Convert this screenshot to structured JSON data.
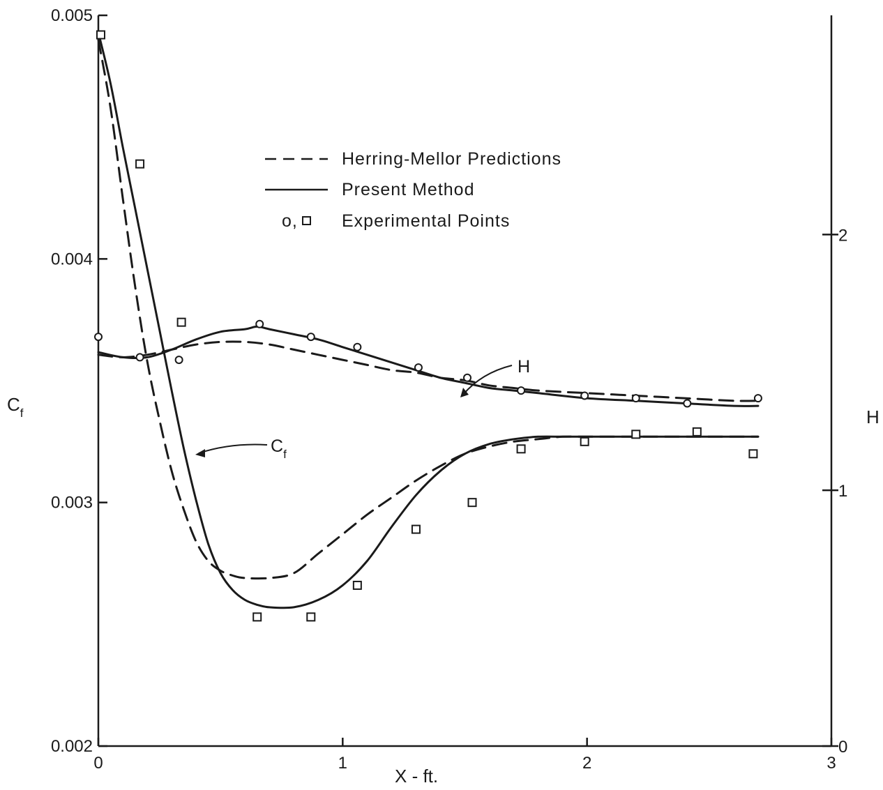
{
  "chart_data": {
    "type": "line",
    "x_axis": {
      "label": "X - ft.",
      "range": [
        0,
        3
      ],
      "ticks": [
        0,
        1,
        2,
        3
      ],
      "tick_labels": [
        "0",
        "1",
        "2",
        "3"
      ]
    },
    "y_left_axis": {
      "label": "C",
      "label_subscript": "f",
      "range": [
        0.002,
        0.005
      ],
      "ticks": [
        0.002,
        0.003,
        0.004,
        0.005
      ],
      "tick_labels": [
        "0.002",
        "0.003",
        "0.004",
        "0.005"
      ]
    },
    "y_right_axis": {
      "label": "H",
      "range": [
        0,
        2.857
      ],
      "ticks": [
        0,
        1,
        2
      ],
      "tick_labels": [
        "0",
        "1",
        "2"
      ]
    },
    "grid": false,
    "legend": {
      "placement": "top-center",
      "entries": [
        {
          "style": "dashed",
          "label": "Herring-Mellor Predictions"
        },
        {
          "style": "solid",
          "label": "Present Method"
        },
        {
          "style": "markers",
          "symbol_text": "o,",
          "label": "Experimental Points"
        }
      ]
    },
    "annotations": [
      {
        "text": "H",
        "target": "H curves"
      },
      {
        "text": "C",
        "subscript": "f",
        "target": "Cf curves"
      }
    ],
    "series": [
      {
        "curve": "Cf",
        "style": "solid",
        "axis": "left",
        "x": [
          0,
          0.05,
          0.1,
          0.15,
          0.2,
          0.25,
          0.3,
          0.35,
          0.4,
          0.45,
          0.5,
          0.55,
          0.6,
          0.65,
          0.7,
          0.8,
          0.9,
          1.0,
          1.1,
          1.2,
          1.3,
          1.4,
          1.5,
          1.6,
          1.7,
          1.8,
          1.9,
          2.0,
          2.2,
          2.4,
          2.6,
          2.7
        ],
        "y": [
          0.00493,
          0.00472,
          0.00446,
          0.00421,
          0.00396,
          0.00371,
          0.00346,
          0.00322,
          0.00301,
          0.00283,
          0.00271,
          0.00264,
          0.0026,
          0.00258,
          0.00257,
          0.00257,
          0.0026,
          0.00266,
          0.00276,
          0.0029,
          0.00303,
          0.00313,
          0.0032,
          0.00324,
          0.00326,
          0.00327,
          0.00327,
          0.00327,
          0.00327,
          0.00327,
          0.00327,
          0.00327
        ]
      },
      {
        "curve": "Cf",
        "style": "dashed",
        "axis": "left",
        "x": [
          0,
          0.05,
          0.1,
          0.15,
          0.2,
          0.25,
          0.3,
          0.35,
          0.4,
          0.45,
          0.5,
          0.55,
          0.6,
          0.7,
          0.8,
          0.9,
          1.0,
          1.1,
          1.2,
          1.3,
          1.4,
          1.5,
          1.6,
          1.7,
          1.8,
          1.9,
          2.0,
          2.2,
          2.4,
          2.6,
          2.7
        ],
        "y": [
          0.0049,
          0.00462,
          0.00425,
          0.00389,
          0.00358,
          0.00334,
          0.00313,
          0.00297,
          0.00284,
          0.00276,
          0.00272,
          0.0027,
          0.00269,
          0.00269,
          0.00271,
          0.00279,
          0.00287,
          0.00295,
          0.00302,
          0.00309,
          0.00315,
          0.0032,
          0.00323,
          0.00325,
          0.00326,
          0.00327,
          0.00327,
          0.00327,
          0.00327,
          0.00327,
          0.00327
        ]
      },
      {
        "curve": "H",
        "style": "solid",
        "axis": "right",
        "x": [
          0,
          0.1,
          0.2,
          0.3,
          0.4,
          0.5,
          0.6,
          0.65,
          0.7,
          0.8,
          0.9,
          1.0,
          1.1,
          1.2,
          1.3,
          1.4,
          1.5,
          1.6,
          1.7,
          1.8,
          2.0,
          2.2,
          2.4,
          2.6,
          2.7
        ],
        "y": [
          1.54,
          1.52,
          1.52,
          1.55,
          1.59,
          1.62,
          1.63,
          1.64,
          1.63,
          1.61,
          1.59,
          1.56,
          1.53,
          1.5,
          1.47,
          1.44,
          1.42,
          1.4,
          1.39,
          1.38,
          1.36,
          1.35,
          1.34,
          1.33,
          1.33
        ]
      },
      {
        "curve": "H",
        "style": "dashed",
        "axis": "right",
        "x": [
          0,
          0.1,
          0.2,
          0.3,
          0.4,
          0.5,
          0.6,
          0.7,
          0.8,
          0.9,
          1.0,
          1.1,
          1.2,
          1.3,
          1.4,
          1.5,
          1.6,
          1.7,
          1.8,
          2.0,
          2.2,
          2.4,
          2.6,
          2.7
        ],
        "y": [
          1.53,
          1.52,
          1.53,
          1.55,
          1.57,
          1.58,
          1.58,
          1.57,
          1.55,
          1.53,
          1.51,
          1.49,
          1.47,
          1.46,
          1.44,
          1.43,
          1.41,
          1.4,
          1.39,
          1.38,
          1.37,
          1.36,
          1.35,
          1.35
        ]
      },
      {
        "curve": "Cf",
        "style": "markers",
        "marker": "square",
        "axis": "left",
        "x": [
          0.01,
          0.17,
          0.34,
          0.65,
          0.87,
          1.06,
          1.3,
          1.53,
          1.73,
          1.99,
          2.2,
          2.45,
          2.68
        ],
        "y": [
          0.00492,
          0.00439,
          0.00374,
          0.00253,
          0.00253,
          0.00266,
          0.00289,
          0.003,
          0.00322,
          0.00325,
          0.00328,
          0.00329,
          0.0032
        ]
      },
      {
        "curve": "H",
        "style": "markers",
        "marker": "circle",
        "axis": "right",
        "x": [
          0,
          0.17,
          0.33,
          0.66,
          0.87,
          1.06,
          1.31,
          1.51,
          1.73,
          1.99,
          2.2,
          2.41,
          2.7
        ],
        "y": [
          1.6,
          1.52,
          1.51,
          1.65,
          1.6,
          1.56,
          1.48,
          1.44,
          1.39,
          1.37,
          1.36,
          1.34,
          1.36
        ]
      }
    ]
  }
}
